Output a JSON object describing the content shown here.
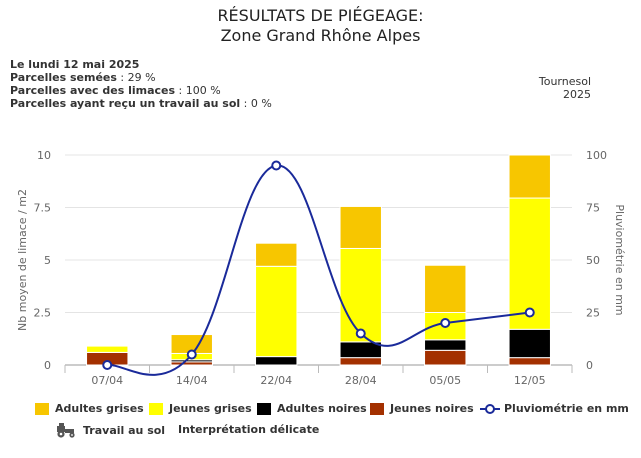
{
  "title": {
    "line1": "RÉSULTATS DE PIÉGEAGE:",
    "line2": "Zone Grand Rhône Alpes"
  },
  "info": {
    "date": "Le lundi 12 mai 2025",
    "semees_label": "Parcelles semées",
    "semees_value": " : 29 %",
    "limaces_label": "Parcelles avec des limaces",
    "limaces_value": " : 100 %",
    "travail_label": "Parcelles ayant reçu un travail au sol",
    "travail_value": " : 0 %"
  },
  "crop": {
    "name": "Tournesol",
    "year": "2025"
  },
  "legend": {
    "adultes_grises": "Adultes grises",
    "jeunes_grises": "Jeunes grises",
    "adultes_noires": "Adultes noires",
    "jeunes_noires": "Jeunes noires",
    "pluvio": "Pluviométrie en mm",
    "travail": "Travail au sol",
    "tractor_icon": "tractor-icon"
  },
  "note": "Interprétation délicate",
  "colors": {
    "adultes_grises": "#f7c600",
    "jeunes_grises": "#ffff00",
    "adultes_noires": "#000000",
    "jeunes_noires": "#a33000",
    "pluvio": "#1a2a9a"
  },
  "chart_data": {
    "type": "bar",
    "stacked": true,
    "categories": [
      "07/04",
      "14/04",
      "22/04",
      "28/04",
      "05/05",
      "12/05"
    ],
    "ylabel": "Nb moyen de limace / m2",
    "ylabel_right": "Pluviométrie en mm",
    "ylim": [
      0,
      10
    ],
    "ylim_right": [
      0,
      100
    ],
    "yticks": [
      "0",
      "2.5",
      "5",
      "7.5",
      "10"
    ],
    "yticks_right": [
      "0",
      "25",
      "50",
      "75",
      "100"
    ],
    "series": [
      {
        "name": "Jeunes noires",
        "values": [
          0.6,
          0.15,
          0,
          0.35,
          0.7,
          0.35
        ]
      },
      {
        "name": "Adultes noires",
        "values": [
          0,
          0.1,
          0.4,
          0.75,
          0.5,
          1.35
        ]
      },
      {
        "name": "Jeunes grises",
        "values": [
          0.3,
          0.3,
          4.3,
          4.45,
          1.3,
          6.25
        ]
      },
      {
        "name": "Adultes grises",
        "values": [
          0,
          0.9,
          1.1,
          2.0,
          2.25,
          2.05
        ]
      }
    ],
    "line": {
      "name": "Pluviométrie en mm",
      "axis": "right",
      "values": [
        0,
        5,
        95,
        15,
        20,
        25
      ]
    }
  }
}
